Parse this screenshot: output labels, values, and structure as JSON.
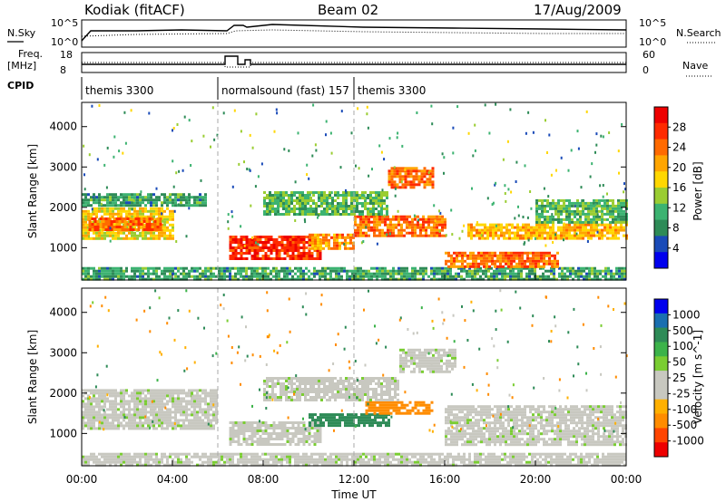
{
  "header": {
    "title": "Kodiak (fitACF)",
    "beam": "Beam 02",
    "date": "17/Aug/2009"
  },
  "side_labels": {
    "nsky": "N.Sky",
    "nsearch": "N.Search",
    "freq_line1": "Freq.",
    "freq_line2": "[MHz]",
    "nave": "Nave",
    "cpid": "CPID"
  },
  "noise_panel": {
    "left_ticks": [
      "10^5",
      "10^0"
    ],
    "right_ticks": [
      "10^5",
      "10^0"
    ]
  },
  "freq_panel": {
    "left_ticks": [
      "18",
      "8"
    ],
    "right_ticks": [
      "60",
      "0"
    ]
  },
  "cpid_segments": [
    {
      "label": "themis 3300",
      "start_hour": 0
    },
    {
      "label": "normalsound (fast) 157",
      "start_hour": 6
    },
    {
      "label": "themis 3300",
      "start_hour": 12
    }
  ],
  "colors": {
    "power_scale": [
      "#0000ee",
      "#1a4bb8",
      "#2e8b57",
      "#3cb371",
      "#9acd32",
      "#ffd700",
      "#ffa500",
      "#ff6a00",
      "#ff2a00",
      "#ee0000"
    ],
    "velocity_scale": [
      "#ee0000",
      "#ff4500",
      "#ff8c00",
      "#ffb000",
      "#c8c8c0",
      "#c8c8c0",
      "#7acd32",
      "#3cb34a",
      "#2e8b57",
      "#1a6fb0",
      "#0000ee"
    ]
  },
  "chart_data": [
    {
      "type": "heatmap",
      "title": "Power",
      "xlabel": "",
      "ylabel": "Slant Range [km]",
      "xlim": [
        0,
        24
      ],
      "ylim": [
        200,
        4600
      ],
      "y_ticks": [
        "1000",
        "2000",
        "3000",
        "4000"
      ],
      "x_ticks": [
        "00:00",
        "04:00",
        "08:00",
        "12:00",
        "16:00",
        "20:00",
        "00:00"
      ],
      "colorbar_label": "Power [dB]",
      "colorbar_ticks": [
        "28",
        "24",
        "20",
        "16",
        "12",
        "8",
        "4"
      ],
      "colorbar_range": [
        0,
        32
      ],
      "vertical_markers_hours": [
        6,
        12
      ],
      "bands": [
        {
          "x": [
            0.0,
            24.0
          ],
          "y": [
            200,
            520
          ],
          "value": 10
        },
        {
          "x": [
            0.0,
            4.0
          ],
          "y": [
            1200,
            2000
          ],
          "value": 18
        },
        {
          "x": [
            0.3,
            3.5
          ],
          "y": [
            1450,
            1750
          ],
          "value": 24
        },
        {
          "x": [
            0.0,
            5.5
          ],
          "y": [
            2050,
            2350
          ],
          "value": 10
        },
        {
          "x": [
            6.5,
            10.5
          ],
          "y": [
            700,
            1300
          ],
          "value": 28
        },
        {
          "x": [
            10.0,
            12.0
          ],
          "y": [
            1000,
            1350
          ],
          "value": 22
        },
        {
          "x": [
            12.0,
            16.0
          ],
          "y": [
            1300,
            1800
          ],
          "value": 24
        },
        {
          "x": [
            13.5,
            15.5
          ],
          "y": [
            2500,
            3000
          ],
          "value": 24
        },
        {
          "x": [
            8.0,
            13.5
          ],
          "y": [
            1800,
            2400
          ],
          "value": 12
        },
        {
          "x": [
            16.0,
            21.0
          ],
          "y": [
            500,
            900
          ],
          "value": 24
        },
        {
          "x": [
            17.0,
            24.0
          ],
          "y": [
            1200,
            1600
          ],
          "value": 20
        },
        {
          "x": [
            20.0,
            24.0
          ],
          "y": [
            1600,
            2200
          ],
          "value": 12
        }
      ]
    },
    {
      "type": "heatmap",
      "title": "Velocity",
      "xlabel": "Time UT",
      "ylabel": "Slant Range [km]",
      "xlim": [
        0,
        24
      ],
      "ylim": [
        200,
        4600
      ],
      "y_ticks": [
        "1000",
        "2000",
        "3000",
        "4000"
      ],
      "x_ticks": [
        "00:00",
        "04:00",
        "08:00",
        "12:00",
        "16:00",
        "20:00",
        "00:00"
      ],
      "colorbar_label": "Velocity [m s^-1]",
      "colorbar_ticks": [
        "1000",
        "500",
        "100",
        "50",
        "25",
        "-25",
        "-100",
        "-500",
        "-1000"
      ],
      "vertical_markers_hours": [
        6,
        12
      ],
      "bands": [
        {
          "x": [
            0.0,
            24.0
          ],
          "y": [
            200,
            520
          ],
          "value": 0
        },
        {
          "x": [
            0.0,
            6.0
          ],
          "y": [
            1100,
            2100
          ],
          "value": 0
        },
        {
          "x": [
            6.5,
            10.5
          ],
          "y": [
            700,
            1300
          ],
          "value": 0
        },
        {
          "x": [
            10.0,
            13.5
          ],
          "y": [
            1200,
            1500
          ],
          "value": 150
        },
        {
          "x": [
            12.5,
            15.5
          ],
          "y": [
            1500,
            1800
          ],
          "value": -200
        },
        {
          "x": [
            8.0,
            14.0
          ],
          "y": [
            1800,
            2400
          ],
          "value": 0
        },
        {
          "x": [
            14.0,
            16.5
          ],
          "y": [
            2500,
            3100
          ],
          "value": 0
        },
        {
          "x": [
            16.0,
            24.0
          ],
          "y": [
            700,
            1700
          ],
          "value": 0
        }
      ]
    }
  ]
}
